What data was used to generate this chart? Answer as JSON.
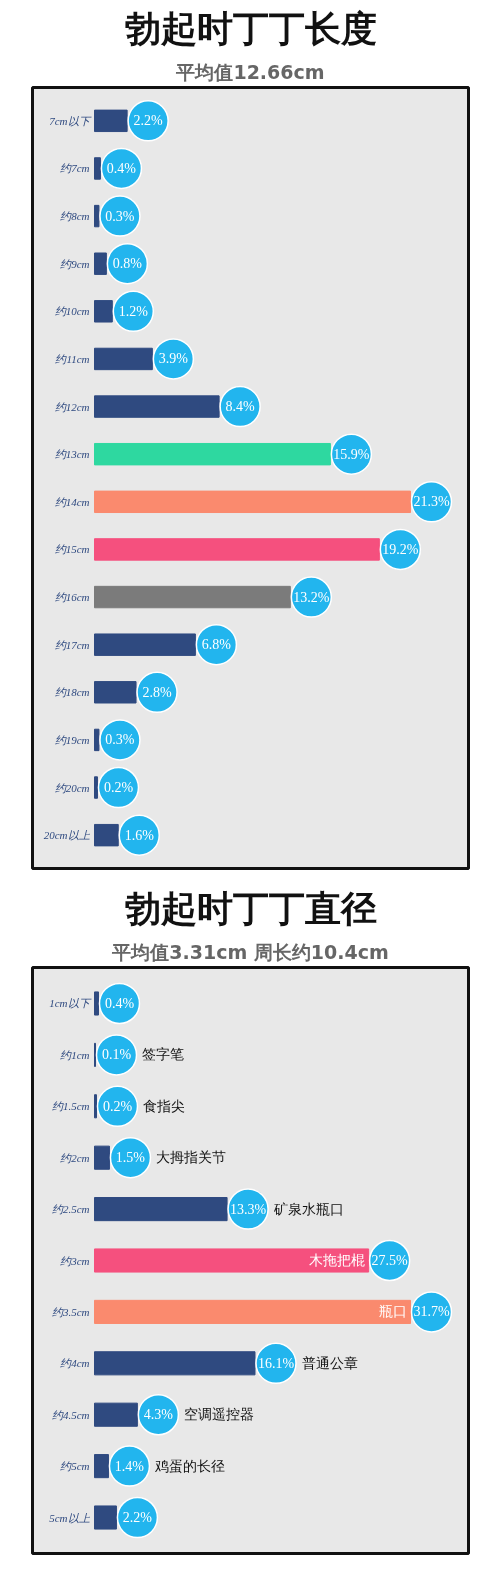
{
  "chart_data": [
    {
      "type": "bar",
      "orientation": "horizontal",
      "title": "勃起时丁丁长度",
      "subtitle": "平均值12.66cm",
      "categories": [
        "7cm以下",
        "约7cm",
        "约8cm",
        "约9cm",
        "约10cm",
        "约11cm",
        "约12cm",
        "约13cm",
        "约14cm",
        "约15cm",
        "约16cm",
        "约17cm",
        "约18cm",
        "约19cm",
        "约20cm",
        "20cm以上"
      ],
      "values": [
        2.2,
        0.4,
        0.3,
        0.8,
        1.2,
        3.9,
        8.4,
        15.9,
        21.3,
        19.2,
        13.2,
        6.8,
        2.8,
        0.3,
        0.2,
        1.6
      ],
      "value_labels": [
        "2.2%",
        "0.4%",
        "0.3%",
        "0.8%",
        "1.2%",
        "3.9%",
        "8.4%",
        "15.9%",
        "21.3%",
        "19.2%",
        "13.2%",
        "6.8%",
        "2.8%",
        "0.3%",
        "0.2%",
        "1.6%"
      ],
      "colors": [
        "#2f4a80",
        "#2f4a80",
        "#2f4a80",
        "#2f4a80",
        "#2f4a80",
        "#2f4a80",
        "#2f4a80",
        "#2ed8a0",
        "#fa8a6e",
        "#f5507e",
        "#7b7b7b",
        "#2f4a80",
        "#2f4a80",
        "#2f4a80",
        "#2f4a80",
        "#2f4a80"
      ]
    },
    {
      "type": "bar",
      "orientation": "horizontal",
      "title": "勃起时丁丁直径",
      "subtitle": "平均值3.31cm 周长约10.4cm",
      "categories": [
        "1cm以下",
        "约1cm",
        "约1.5cm",
        "约2cm",
        "约2.5cm",
        "约3cm",
        "约3.5cm",
        "约4cm",
        "约4.5cm",
        "约5cm",
        "5cm以上"
      ],
      "values": [
        0.4,
        0.1,
        0.2,
        1.5,
        13.3,
        27.5,
        31.7,
        16.1,
        4.3,
        1.4,
        2.2
      ],
      "value_labels": [
        "0.4%",
        "0.1%",
        "0.2%",
        "1.5%",
        "13.3%",
        "27.5%",
        "31.7%",
        "16.1%",
        "4.3%",
        "1.4%",
        "2.2%"
      ],
      "colors": [
        "#2f4a80",
        "#2f4a80",
        "#2f4a80",
        "#2f4a80",
        "#2f4a80",
        "#f5507e",
        "#fa8a6e",
        "#2f4a80",
        "#2f4a80",
        "#2f4a80",
        "#2f4a80"
      ],
      "annotations": [
        "签字笔",
        "食指尖",
        "大拇指关节",
        "矿泉水瓶口",
        "木拖把棍",
        "瓶口",
        "普通公章",
        "空调遥控器",
        "鸡蛋的长径"
      ]
    }
  ]
}
